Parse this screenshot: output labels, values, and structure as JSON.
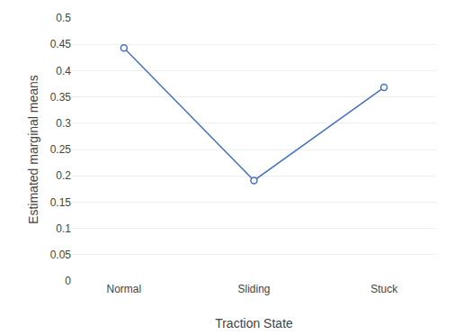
{
  "chart_data": {
    "type": "line",
    "categories": [
      "Normal",
      "Sliding",
      "Stuck"
    ],
    "values": [
      0.443,
      0.191,
      0.368
    ],
    "color": "#4472C4",
    "marker": "circle",
    "xlabel": "Traction State",
    "ylabel": "Estimated marginal means",
    "ylim": [
      0,
      0.5
    ],
    "yticks": [
      0,
      0.05,
      0.1,
      0.15,
      0.2,
      0.25,
      0.3,
      0.35,
      0.4,
      0.45,
      0.5
    ],
    "grid": true
  }
}
